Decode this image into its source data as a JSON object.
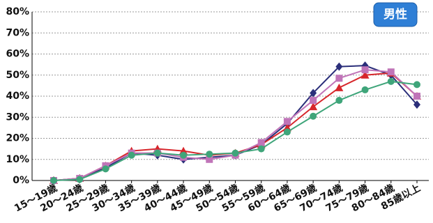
{
  "chart_data": {
    "type": "line",
    "badge": "男性",
    "categories": [
      "15〜19歳",
      "20〜24歳",
      "25〜29歳",
      "30〜34歳",
      "35〜39歳",
      "40〜44歳",
      "45〜49歳",
      "50〜54歳",
      "55〜59歳",
      "60〜64歳",
      "65〜69歳",
      "70〜74歳",
      "75〜79歳",
      "80〜84歳",
      "85歳以上"
    ],
    "series": [
      {
        "color": "#2b2f7a",
        "marker": "diamond",
        "values": [
          0,
          1,
          6,
          13,
          12,
          10,
          11,
          12,
          17,
          27,
          41.5,
          54,
          54.5,
          50,
          36
        ]
      },
      {
        "color": "#d7262b",
        "marker": "triangle",
        "values": [
          0,
          1,
          7,
          14,
          15,
          14,
          12,
          13,
          17,
          25,
          35,
          44,
          50,
          51,
          40
        ]
      },
      {
        "color": "#c074b8",
        "marker": "square",
        "values": [
          0,
          1,
          7,
          13,
          13,
          11,
          10,
          12,
          18,
          28,
          38,
          48.5,
          52.5,
          51.5,
          40
        ]
      },
      {
        "color": "#3fa57a",
        "marker": "circle",
        "values": [
          0,
          0.5,
          5.5,
          12,
          13,
          12,
          12.5,
          13,
          15,
          23,
          30.5,
          38,
          43,
          47,
          45.5
        ]
      }
    ],
    "ylim": [
      0,
      80
    ],
    "yticks": [
      {
        "value": 0,
        "label": "0%"
      },
      {
        "value": 10,
        "label": "10%"
      },
      {
        "value": 20,
        "label": "20%"
      },
      {
        "value": 30,
        "label": "30%"
      },
      {
        "value": 40,
        "label": "40%"
      },
      {
        "value": 50,
        "label": "50%"
      },
      {
        "value": 60,
        "label": "60%"
      },
      {
        "value": 70,
        "label": "70%"
      },
      {
        "value": 80,
        "label": "80%"
      }
    ],
    "grid": true
  }
}
